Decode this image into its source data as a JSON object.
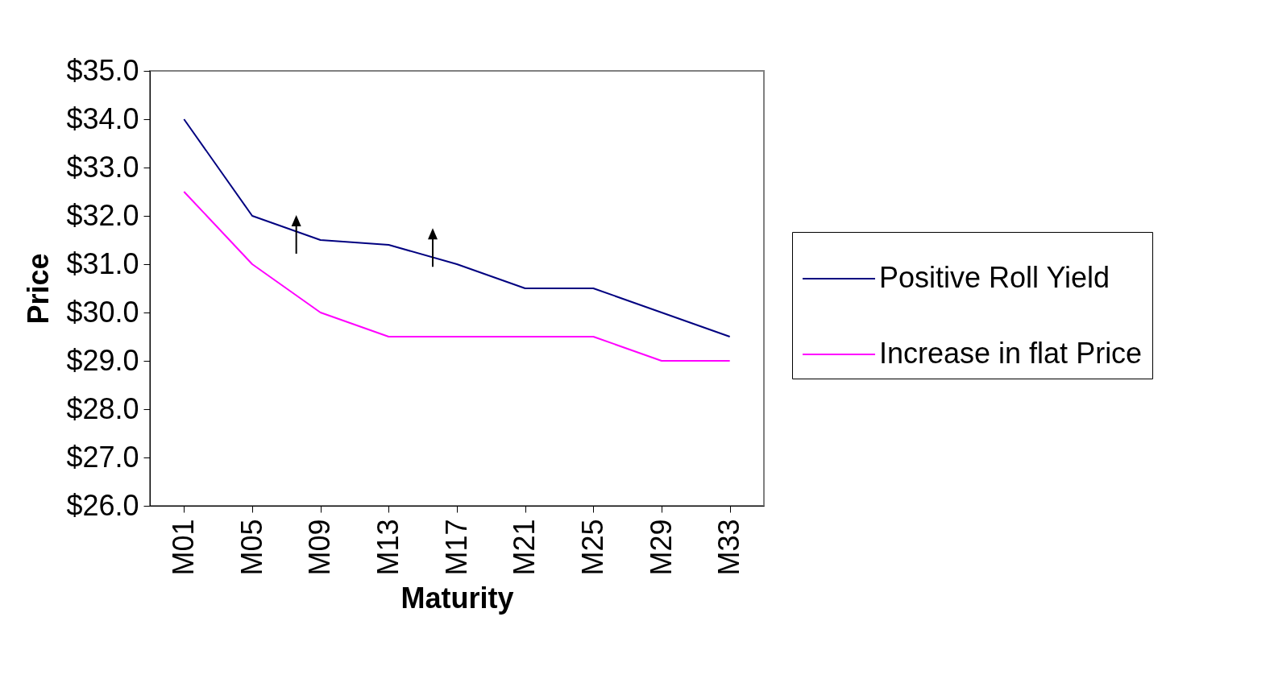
{
  "chart_data": {
    "type": "line",
    "xlabel": "Maturity",
    "ylabel": "Price",
    "categories": [
      "M01",
      "M05",
      "M09",
      "M13",
      "M17",
      "M21",
      "M25",
      "M29",
      "M33"
    ],
    "series": [
      {
        "name": "Positive Roll Yield",
        "color": "#000080",
        "values": [
          34.0,
          32.0,
          31.5,
          31.4,
          31.0,
          30.5,
          30.5,
          30.0,
          29.5
        ]
      },
      {
        "name": "Increase in flat Price",
        "color": "#ff00ff",
        "values": [
          32.5,
          31.0,
          30.0,
          29.5,
          29.5,
          29.5,
          29.5,
          29.0,
          29.0
        ]
      }
    ],
    "ylim": [
      26,
      35
    ],
    "yticks": [
      {
        "value": 26,
        "label": "$26.0"
      },
      {
        "value": 27,
        "label": "$27.0"
      },
      {
        "value": 28,
        "label": "$28.0"
      },
      {
        "value": 29,
        "label": "$29.0"
      },
      {
        "value": 30,
        "label": "$30.0"
      },
      {
        "value": 31,
        "label": "$31.0"
      },
      {
        "value": 32,
        "label": "$32.0"
      },
      {
        "value": 33,
        "label": "$33.0"
      },
      {
        "value": 34,
        "label": "$34.0"
      },
      {
        "value": 35,
        "label": "$35.0"
      }
    ],
    "grid": false,
    "legend": "right",
    "marker": "none",
    "line_style": "solid"
  }
}
